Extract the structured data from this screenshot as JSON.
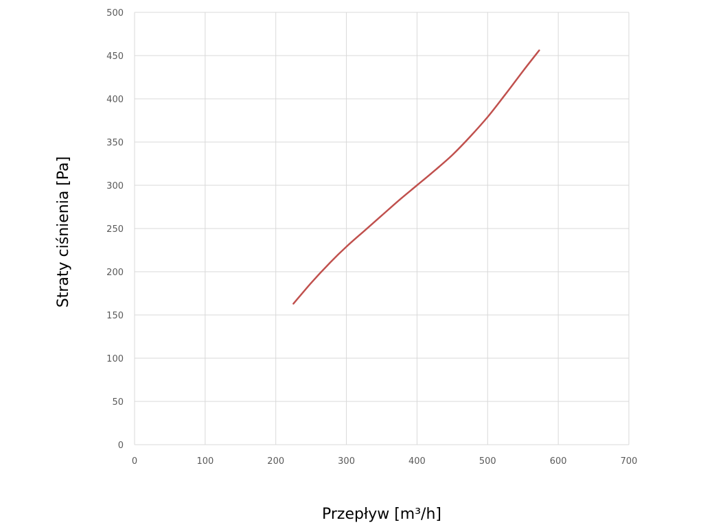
{
  "chart_data": {
    "type": "line",
    "title": "",
    "xlabel": "Przepływ [m³/h]",
    "ylabel": "Straty ciśnienia [Pa]",
    "xlim": [
      0,
      700
    ],
    "ylim": [
      0,
      500
    ],
    "x_ticks": [
      0,
      100,
      200,
      300,
      400,
      500,
      600,
      700
    ],
    "y_ticks": [
      0,
      50,
      100,
      150,
      200,
      250,
      300,
      350,
      400,
      450,
      500
    ],
    "grid": true,
    "legend": "none",
    "series": [
      {
        "color": "#c0504d",
        "x": [
          225,
          250,
          275,
          300,
          325,
          350,
          375,
          400,
          425,
          450,
          475,
          500,
          525,
          550,
          573
        ],
        "y": [
          163,
          187,
          209,
          229,
          247,
          265,
          283,
          300,
          317,
          335,
          356,
          379,
          405,
          432,
          456
        ]
      }
    ]
  }
}
